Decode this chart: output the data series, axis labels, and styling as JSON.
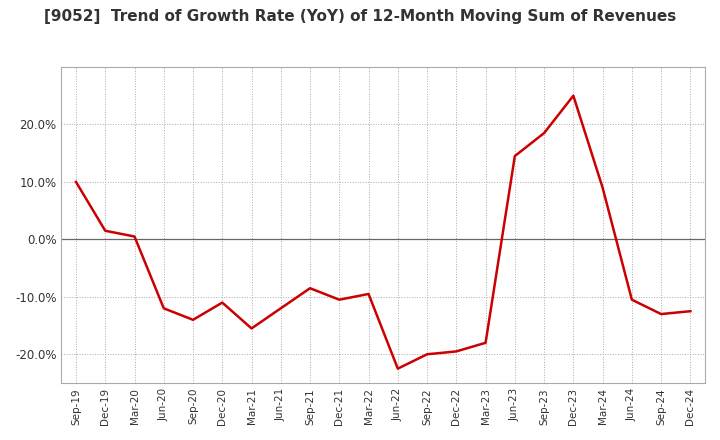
{
  "title": "[9052]  Trend of Growth Rate (YoY) of 12-Month Moving Sum of Revenues",
  "title_fontsize": 11,
  "line_color": "#cc0000",
  "background_color": "#ffffff",
  "grid_color": "#aaaaaa",
  "ylim": [
    -25,
    30
  ],
  "yticks": [
    -20,
    -10,
    0,
    10,
    20
  ],
  "ytick_labels": [
    "-20.0%",
    "-10.0%",
    "0.0%",
    "10.0%",
    "20.0%"
  ],
  "dates": [
    "Sep-19",
    "Dec-19",
    "Mar-20",
    "Jun-20",
    "Sep-20",
    "Dec-20",
    "Mar-21",
    "Jun-21",
    "Sep-21",
    "Dec-21",
    "Mar-22",
    "Jun-22",
    "Sep-22",
    "Dec-22",
    "Mar-23",
    "Jun-23",
    "Sep-23",
    "Dec-23",
    "Mar-24",
    "Jun-24",
    "Sep-24",
    "Dec-24"
  ],
  "values": [
    10.0,
    1.5,
    0.5,
    -12.0,
    -14.0,
    -11.0,
    -15.5,
    -12.0,
    -8.5,
    -10.5,
    -9.5,
    -22.5,
    -20.0,
    -19.5,
    -18.0,
    14.5,
    18.5,
    25.0,
    9.0,
    -10.5,
    -13.0,
    -12.5
  ]
}
